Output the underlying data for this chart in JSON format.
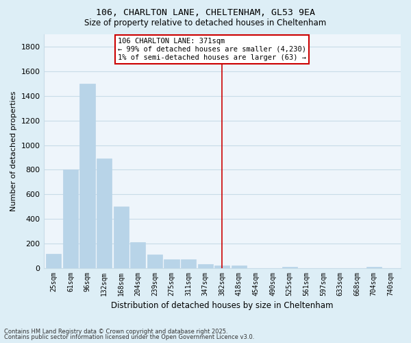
{
  "title1": "106, CHARLTON LANE, CHELTENHAM, GL53 9EA",
  "title2": "Size of property relative to detached houses in Cheltenham",
  "xlabel": "Distribution of detached houses by size in Cheltenham",
  "ylabel": "Number of detached properties",
  "categories": [
    "25sqm",
    "61sqm",
    "96sqm",
    "132sqm",
    "168sqm",
    "204sqm",
    "239sqm",
    "275sqm",
    "311sqm",
    "347sqm",
    "382sqm",
    "418sqm",
    "454sqm",
    "490sqm",
    "525sqm",
    "561sqm",
    "597sqm",
    "633sqm",
    "668sqm",
    "704sqm",
    "740sqm"
  ],
  "values": [
    120,
    800,
    1500,
    890,
    500,
    210,
    110,
    70,
    70,
    35,
    25,
    20,
    0,
    0,
    10,
    0,
    0,
    0,
    0,
    10,
    0
  ],
  "bar_color": "#b8d4e8",
  "vline_index": 10,
  "vline_color": "#cc0000",
  "annotation_text": "106 CHARLTON LANE: 371sqm\n← 99% of detached houses are smaller (4,230)\n1% of semi-detached houses are larger (63) →",
  "annotation_box_color": "#cc0000",
  "ylim": [
    0,
    1900
  ],
  "yticks": [
    0,
    200,
    400,
    600,
    800,
    1000,
    1200,
    1400,
    1600,
    1800
  ],
  "footnote1": "Contains HM Land Registry data © Crown copyright and database right 2025.",
  "footnote2": "Contains public sector information licensed under the Open Government Licence v3.0.",
  "bg_color": "#ddeef6",
  "plot_bg_color": "#eef5fb",
  "grid_color": "#c8dce8"
}
